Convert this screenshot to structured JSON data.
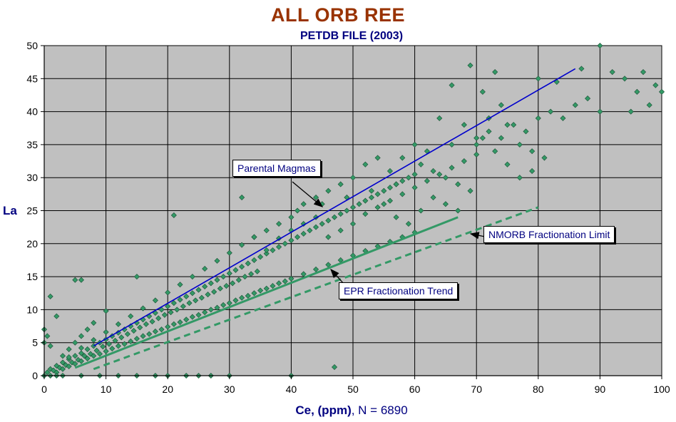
{
  "chart_data": {
    "type": "scatter",
    "title": "ALL ORB REE",
    "subtitle": "PETDB FILE (2003)",
    "xlabel_main": "Ce, (ppm)",
    "xlabel_count": ", N = 6890",
    "ylabel": "La",
    "xlim": [
      0,
      100
    ],
    "ylim": [
      0,
      50
    ],
    "x_ticks": [
      "0",
      "10",
      "20",
      "30",
      "40",
      "50",
      "60",
      "70",
      "80",
      "90",
      "100"
    ],
    "y_ticks": [
      "0",
      "5",
      "10",
      "15",
      "20",
      "25",
      "30",
      "35",
      "40",
      "45",
      "50"
    ],
    "grid": true,
    "background": "#c0c0c0",
    "marker_color": "#339966",
    "marker": "diamond",
    "points": [
      [
        0.5,
        0.5
      ],
      [
        1,
        1
      ],
      [
        1.5,
        0.8
      ],
      [
        2,
        1.5
      ],
      [
        2.5,
        1.2
      ],
      [
        3,
        2
      ],
      [
        3.5,
        1.6
      ],
      [
        4,
        2.5
      ],
      [
        4.5,
        2
      ],
      [
        5,
        3
      ],
      [
        5.5,
        2.4
      ],
      [
        6,
        3.4
      ],
      [
        6.5,
        3
      ],
      [
        7,
        4
      ],
      [
        7.5,
        3.3
      ],
      [
        8,
        4.5
      ],
      [
        8.5,
        3.8
      ],
      [
        9,
        5
      ],
      [
        9.5,
        4.4
      ],
      [
        10,
        5.5
      ],
      [
        10.5,
        4.8
      ],
      [
        11,
        6
      ],
      [
        11.5,
        5.3
      ],
      [
        12,
        6.5
      ],
      [
        12.5,
        5.8
      ],
      [
        13,
        7
      ],
      [
        13.5,
        6.3
      ],
      [
        14,
        7.5
      ],
      [
        14.5,
        6.8
      ],
      [
        15,
        8
      ],
      [
        15.5,
        7.3
      ],
      [
        16,
        8.5
      ],
      [
        16.5,
        7.8
      ],
      [
        17,
        9
      ],
      [
        17.5,
        8.2
      ],
      [
        18,
        9.5
      ],
      [
        18.5,
        8.7
      ],
      [
        19,
        10
      ],
      [
        19.5,
        9.2
      ],
      [
        20,
        10.5
      ],
      [
        20.5,
        9.6
      ],
      [
        21,
        11
      ],
      [
        21.5,
        10
      ],
      [
        22,
        11.5
      ],
      [
        22.5,
        10.5
      ],
      [
        23,
        12
      ],
      [
        23.5,
        11
      ],
      [
        24,
        12.5
      ],
      [
        24.5,
        11.4
      ],
      [
        25,
        13
      ],
      [
        25.5,
        11.8
      ],
      [
        26,
        13.5
      ],
      [
        26.5,
        12.3
      ],
      [
        27,
        14
      ],
      [
        27.5,
        12.7
      ],
      [
        28,
        14.5
      ],
      [
        28.5,
        13.2
      ],
      [
        29,
        15
      ],
      [
        29.5,
        13.6
      ],
      [
        30,
        15.5
      ],
      [
        30.5,
        14
      ],
      [
        31,
        16
      ],
      [
        31.5,
        14.5
      ],
      [
        32,
        16.5
      ],
      [
        32.5,
        15
      ],
      [
        33,
        17
      ],
      [
        33.5,
        15.4
      ],
      [
        34,
        17.5
      ],
      [
        34.5,
        15.8
      ],
      [
        35,
        18
      ],
      [
        36,
        18.5
      ],
      [
        37,
        19
      ],
      [
        38,
        19.5
      ],
      [
        39,
        20
      ],
      [
        40,
        20.5
      ],
      [
        41,
        21
      ],
      [
        42,
        21.5
      ],
      [
        43,
        22
      ],
      [
        44,
        22.5
      ],
      [
        45,
        23
      ],
      [
        46,
        23.5
      ],
      [
        47,
        24
      ],
      [
        48,
        24.5
      ],
      [
        49,
        25
      ],
      [
        50,
        25.5
      ],
      [
        51,
        26
      ],
      [
        52,
        26.5
      ],
      [
        53,
        27
      ],
      [
        54,
        27.5
      ],
      [
        55,
        28
      ],
      [
        56,
        28.5
      ],
      [
        57,
        29
      ],
      [
        58,
        29.5
      ],
      [
        59,
        30
      ],
      [
        60,
        30.5
      ],
      [
        2,
        0.5
      ],
      [
        3,
        1
      ],
      [
        4,
        1.4
      ],
      [
        5,
        1.8
      ],
      [
        6,
        2.2
      ],
      [
        7,
        2.6
      ],
      [
        8,
        3
      ],
      [
        9,
        3.3
      ],
      [
        10,
        3.7
      ],
      [
        11,
        4.1
      ],
      [
        12,
        4.5
      ],
      [
        13,
        4.8
      ],
      [
        14,
        5.2
      ],
      [
        15,
        5.6
      ],
      [
        16,
        6
      ],
      [
        17,
        6.3
      ],
      [
        18,
        6.7
      ],
      [
        19,
        7
      ],
      [
        20,
        7.4
      ],
      [
        21,
        7.8
      ],
      [
        22,
        8.1
      ],
      [
        23,
        8.5
      ],
      [
        24,
        8.9
      ],
      [
        25,
        9.2
      ],
      [
        26,
        9.6
      ],
      [
        27,
        10
      ],
      [
        28,
        10.3
      ],
      [
        29,
        10.7
      ],
      [
        30,
        11
      ],
      [
        31,
        11.4
      ],
      [
        32,
        11.8
      ],
      [
        33,
        12.1
      ],
      [
        34,
        12.5
      ],
      [
        35,
        12.9
      ],
      [
        36,
        13.2
      ],
      [
        37,
        13.6
      ],
      [
        38,
        14
      ],
      [
        39,
        14.3
      ],
      [
        40,
        14.7
      ],
      [
        42,
        15.4
      ],
      [
        44,
        16.1
      ],
      [
        46,
        16.8
      ],
      [
        48,
        17.5
      ],
      [
        50,
        18.2
      ],
      [
        52,
        18.9
      ],
      [
        54,
        19.6
      ],
      [
        56,
        20.3
      ],
      [
        58,
        21
      ],
      [
        60,
        21.7
      ],
      [
        4,
        2.8
      ],
      [
        6,
        4.2
      ],
      [
        8,
        5.4
      ],
      [
        10,
        6.6
      ],
      [
        12,
        7.8
      ],
      [
        14,
        9
      ],
      [
        16,
        10.2
      ],
      [
        18,
        11.4
      ],
      [
        20,
        12.6
      ],
      [
        22,
        13.8
      ],
      [
        24,
        15
      ],
      [
        26,
        16.2
      ],
      [
        28,
        17.4
      ],
      [
        30,
        18.6
      ],
      [
        32,
        19.8
      ],
      [
        34,
        21
      ],
      [
        36,
        19
      ],
      [
        38,
        20.8
      ],
      [
        40,
        22
      ],
      [
        42,
        23
      ],
      [
        44,
        24
      ],
      [
        46,
        21
      ],
      [
        48,
        22
      ],
      [
        50,
        23
      ],
      [
        52,
        24.5
      ],
      [
        54,
        25.5
      ],
      [
        56,
        26.5
      ],
      [
        58,
        27.5
      ],
      [
        60,
        28.5
      ],
      [
        62,
        29.5
      ],
      [
        64,
        30.5
      ],
      [
        66,
        31.5
      ],
      [
        68,
        32.5
      ],
      [
        70,
        33.5
      ],
      [
        41,
        25
      ],
      [
        45,
        26
      ],
      [
        49,
        27
      ],
      [
        53,
        28
      ],
      [
        57,
        29
      ],
      [
        61,
        32
      ],
      [
        63,
        31
      ],
      [
        65,
        30
      ],
      [
        67,
        29
      ],
      [
        69,
        28
      ],
      [
        55,
        26
      ],
      [
        57,
        24
      ],
      [
        59,
        23
      ],
      [
        61,
        25
      ],
      [
        63,
        27
      ],
      [
        65,
        26
      ],
      [
        67,
        25
      ],
      [
        62,
        34
      ],
      [
        66,
        35
      ],
      [
        70,
        36
      ],
      [
        72,
        37
      ],
      [
        74,
        36
      ],
      [
        76,
        38
      ],
      [
        78,
        37
      ],
      [
        80,
        39
      ],
      [
        82,
        40
      ],
      [
        84,
        39
      ],
      [
        86,
        41
      ],
      [
        88,
        42
      ],
      [
        90,
        40
      ],
      [
        92,
        46
      ],
      [
        94,
        45
      ],
      [
        95,
        40
      ],
      [
        96,
        43
      ],
      [
        97,
        46
      ],
      [
        98,
        41
      ],
      [
        99,
        44
      ],
      [
        100,
        43
      ],
      [
        90,
        50
      ],
      [
        87,
        46.5
      ],
      [
        80,
        45
      ],
      [
        83,
        44.5
      ],
      [
        66,
        44
      ],
      [
        71,
        43
      ],
      [
        69,
        47
      ],
      [
        73,
        46
      ],
      [
        75,
        38
      ],
      [
        77,
        35
      ],
      [
        79,
        34
      ],
      [
        81,
        33
      ],
      [
        71,
        36
      ],
      [
        73,
        34
      ],
      [
        75,
        32
      ],
      [
        77,
        30
      ],
      [
        79,
        31
      ],
      [
        72,
        39
      ],
      [
        74,
        41
      ],
      [
        68,
        38
      ],
      [
        70,
        35
      ],
      [
        64,
        39
      ],
      [
        60,
        35
      ],
      [
        58,
        33
      ],
      [
        56,
        31
      ],
      [
        54,
        33
      ],
      [
        52,
        32
      ],
      [
        50,
        30
      ],
      [
        48,
        29
      ],
      [
        46,
        28
      ],
      [
        44,
        27
      ],
      [
        42,
        26
      ],
      [
        40,
        24
      ],
      [
        38,
        23
      ],
      [
        36,
        22
      ],
      [
        34,
        21
      ],
      [
        32,
        27
      ],
      [
        47,
        1.3
      ],
      [
        21,
        24.3
      ],
      [
        10,
        9.8
      ],
      [
        15,
        15
      ],
      [
        5,
        14.5
      ],
      [
        6,
        14.5
      ],
      [
        1,
        12
      ],
      [
        2,
        9
      ],
      [
        0,
        7
      ],
      [
        0,
        5
      ],
      [
        1,
        4.5
      ],
      [
        0.5,
        6
      ],
      [
        3,
        3
      ],
      [
        4,
        4
      ],
      [
        5,
        5
      ],
      [
        6,
        6
      ],
      [
        7,
        7
      ],
      [
        8,
        8
      ],
      [
        0,
        0
      ],
      [
        3,
        0
      ],
      [
        6,
        0
      ],
      [
        9,
        0
      ],
      [
        12,
        0
      ],
      [
        15,
        0
      ],
      [
        18,
        0
      ],
      [
        20,
        0
      ],
      [
        23,
        0
      ],
      [
        25,
        0
      ],
      [
        27,
        0
      ],
      [
        30,
        0
      ],
      [
        40,
        0
      ],
      [
        1,
        0
      ],
      [
        2,
        0
      ]
    ],
    "lines": [
      {
        "x": [
          8,
          86
        ],
        "y": [
          4.5,
          46.5
        ],
        "color": "#0000cc",
        "dash": false
      },
      {
        "x": [
          5,
          67
        ],
        "y": [
          1.2,
          24
        ],
        "color": "#339966",
        "dash": false
      },
      {
        "x": [
          8,
          80
        ],
        "y": [
          1,
          25.5
        ],
        "color": "#339966",
        "dash": true
      }
    ],
    "annotations": [
      {
        "text": "Parental Magmas"
      },
      {
        "text": "NMORB Fractionation Limit"
      },
      {
        "text": "EPR Fractionation Trend"
      }
    ]
  }
}
